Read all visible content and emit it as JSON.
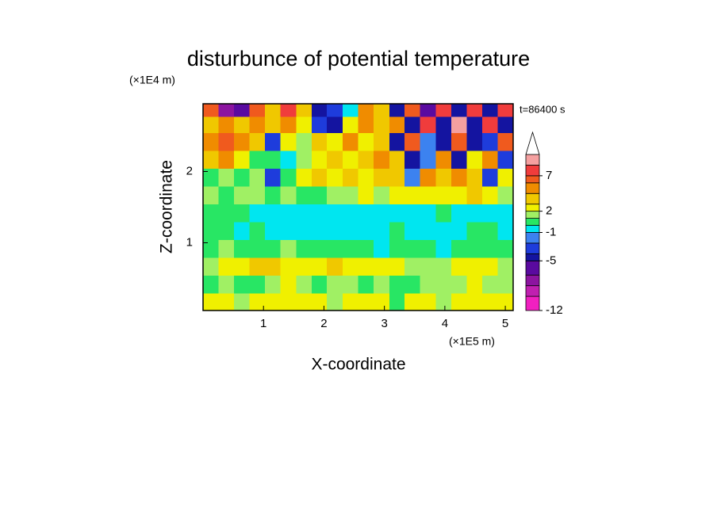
{
  "chart_data": {
    "type": "contour",
    "title": "disturbunce of potential temperature",
    "y_unit": "(×1E4 m)",
    "x_unit": "(×1E5 m)",
    "annotation": "t=86400 s",
    "xlabel": "X-coordinate",
    "ylabel": "Z-coordinate",
    "xlim": [
      0,
      5.13
    ],
    "ylim": [
      0.05,
      2.95
    ],
    "xticks": [
      1,
      2,
      3,
      4,
      5
    ],
    "yticks": [
      1,
      2
    ],
    "x": [
      0.13,
      0.38,
      0.64,
      0.9,
      1.15,
      1.41,
      1.67,
      1.92,
      2.18,
      2.44,
      2.69,
      2.95,
      3.21,
      3.46,
      3.72,
      3.98,
      4.23,
      4.49,
      4.75,
      5.0
    ],
    "y": [
      0.17,
      0.42,
      0.67,
      0.92,
      1.17,
      1.42,
      1.67,
      1.92,
      2.17,
      2.42,
      2.67,
      2.88
    ],
    "z": [
      [
        2.5,
        2.5,
        1.5,
        2.5,
        2.5,
        2.5,
        2.5,
        2.5,
        1.5,
        2.5,
        2.5,
        2.5,
        0.5,
        2.5,
        2.5,
        1.5,
        2.5,
        2.5,
        2.5,
        2.5
      ],
      [
        0.5,
        1.5,
        0.5,
        0.5,
        1.5,
        2.5,
        1.5,
        0.5,
        1.5,
        1.5,
        0.5,
        1.5,
        0.5,
        0.5,
        1.5,
        1.5,
        1.5,
        2.5,
        1.5,
        1.5
      ],
      [
        1.5,
        2.5,
        2.5,
        3.5,
        3.5,
        2.5,
        2.5,
        2.5,
        3.5,
        2.5,
        2.5,
        2.5,
        2.5,
        1.5,
        1.5,
        1.5,
        2.5,
        2.5,
        2.5,
        1.5
      ],
      [
        0.5,
        1.5,
        0.5,
        0.5,
        0.5,
        1.5,
        0.5,
        0.5,
        0.5,
        0.5,
        0.5,
        -0.5,
        0.5,
        0.5,
        0.5,
        -0.5,
        0.5,
        0.5,
        0.5,
        0.5
      ],
      [
        0.5,
        0.5,
        -0.5,
        0.5,
        -0.5,
        -0.5,
        -0.5,
        -0.5,
        -0.5,
        -0.5,
        -0.5,
        -0.5,
        0.5,
        -0.5,
        -0.5,
        -0.5,
        -0.5,
        0.5,
        0.5,
        -0.5
      ],
      [
        0.5,
        0.5,
        0.5,
        -0.5,
        -0.5,
        -0.5,
        -0.5,
        -0.5,
        -0.5,
        -0.5,
        -0.5,
        -0.5,
        -0.5,
        -0.5,
        -0.5,
        0.5,
        -0.5,
        -0.5,
        -0.5,
        -0.5
      ],
      [
        1.5,
        0.5,
        1.5,
        1.5,
        0.5,
        1.5,
        0.5,
        0.5,
        1.5,
        1.5,
        2.5,
        1.5,
        2.5,
        2.5,
        2.5,
        2.5,
        2.5,
        3.5,
        2.5,
        1.5
      ],
      [
        0.5,
        1.5,
        0.5,
        1.5,
        -3,
        0.5,
        2.5,
        3.5,
        2.5,
        3.5,
        2.5,
        3.5,
        3.5,
        -2,
        5,
        3.5,
        5,
        3.5,
        -3,
        2.5
      ],
      [
        3.5,
        5,
        2.5,
        0.5,
        0.5,
        -0.5,
        1.5,
        2.5,
        3.5,
        2.5,
        3.5,
        5,
        3.5,
        -4.5,
        -1.5,
        5,
        -4.5,
        2.5,
        5,
        -3
      ],
      [
        5,
        6.5,
        5,
        3.5,
        -3,
        2.5,
        1.5,
        3.5,
        2.5,
        5,
        2.5,
        3.5,
        -4.5,
        6.5,
        -1.5,
        -4.5,
        6.5,
        -4.5,
        -3,
        6.5
      ],
      [
        3.5,
        5,
        3.5,
        5,
        3.5,
        5,
        2.5,
        -3,
        -4.5,
        2.5,
        5,
        3.5,
        5,
        -4.5,
        7.5,
        -4.5,
        9,
        -4.5,
        7.5,
        -4.5
      ],
      [
        6.5,
        -8,
        -6,
        6.5,
        3.5,
        7.5,
        3.5,
        -4.5,
        -3,
        -0.5,
        5,
        3.5,
        -4.5,
        6.5,
        -6,
        7.5,
        -4.5,
        8,
        -4.5,
        7.5
      ]
    ],
    "levels": [
      -12,
      -10,
      -8.5,
      -7,
      -5,
      -4,
      -2.5,
      -1,
      0,
      1,
      2,
      3,
      4.5,
      6,
      7,
      8.5,
      10
    ],
    "colors": [
      "#f020c0",
      "#c020b0",
      "#8c14a0",
      "#5a0aa0",
      "#1414a0",
      "#1e3cdc",
      "#3c82f0",
      "#00e6f0",
      "#28e664",
      "#a0f064",
      "#f0f000",
      "#f0c800",
      "#f08c00",
      "#f05a1e",
      "#f03c3c",
      "#f5a0a0"
    ],
    "over_color": "#ffffff",
    "colorbar_ticks": [
      -12,
      -5,
      -1,
      2,
      7
    ]
  }
}
